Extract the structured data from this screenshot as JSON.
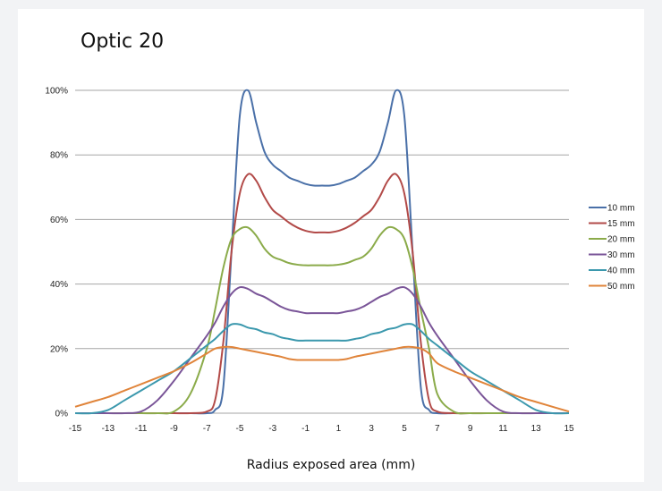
{
  "chart_data": {
    "type": "line",
    "title": "Optic 20",
    "xlabel": "Radius exposed area (mm)",
    "ylabel": "",
    "xlim": [
      -15,
      15
    ],
    "ylim": [
      0,
      100
    ],
    "x_ticks": [
      -15,
      -13,
      -11,
      -9,
      -7,
      -5,
      -3,
      -1,
      1,
      3,
      5,
      7,
      9,
      11,
      13,
      15
    ],
    "y_ticks": [
      0,
      20,
      40,
      60,
      80,
      100
    ],
    "y_tick_format": "percent",
    "grid": "horizontal",
    "legend_position": "right",
    "x": [
      -15,
      -14,
      -13,
      -12,
      -11,
      -10,
      -9,
      -8,
      -7,
      -6.5,
      -6,
      -5.5,
      -5,
      -4.5,
      -4,
      -3.5,
      -3,
      -2.5,
      -2,
      -1.5,
      -1,
      -0.5,
      0,
      0.5,
      1,
      1.5,
      2,
      2.5,
      3,
      3.5,
      4,
      4.5,
      5,
      5.5,
      6,
      6.5,
      7,
      8,
      9,
      10,
      11,
      12,
      13,
      14,
      15
    ],
    "series": [
      {
        "name": "10 mm",
        "color": "#4a70a8",
        "values": [
          0,
          0,
          0,
          0,
          0,
          0,
          0,
          0,
          0,
          1,
          8,
          50,
          92,
          100,
          90,
          81,
          77,
          75,
          73,
          72,
          71,
          70.5,
          70.5,
          70.5,
          71,
          72,
          73,
          75,
          77,
          81,
          90,
          100,
          92,
          50,
          8,
          1,
          0,
          0,
          0,
          0,
          0,
          0,
          0,
          0,
          0
        ]
      },
      {
        "name": "15 mm",
        "color": "#b24a48",
        "values": [
          0,
          0,
          0,
          0,
          0,
          0,
          0,
          0,
          0.5,
          4,
          22,
          50,
          68,
          74,
          72,
          67,
          63,
          61,
          59,
          57.5,
          56.5,
          56,
          56,
          56,
          56.5,
          57.5,
          59,
          61,
          63,
          67,
          72,
          74,
          68,
          50,
          22,
          4,
          0.5,
          0,
          0,
          0,
          0,
          0,
          0,
          0,
          0
        ]
      },
      {
        "name": "20 mm",
        "color": "#8bab4a",
        "values": [
          0,
          0,
          0,
          0,
          0,
          0,
          0.5,
          6,
          20,
          32,
          45,
          54,
          57,
          57.5,
          55,
          51,
          48.5,
          47.5,
          46.5,
          46,
          45.8,
          45.8,
          45.8,
          45.8,
          46,
          46.5,
          47.5,
          48.5,
          51,
          55,
          57.5,
          57,
          54,
          45,
          32,
          20,
          6,
          0.5,
          0,
          0,
          0,
          0,
          0,
          0,
          0
        ]
      },
      {
        "name": "30 mm",
        "color": "#7a5598",
        "values": [
          0,
          0,
          0,
          0,
          0.5,
          4,
          10,
          17,
          24,
          28,
          33,
          37,
          39,
          38.5,
          37,
          36,
          34.5,
          33,
          32,
          31.5,
          31,
          31,
          31,
          31,
          31,
          31.5,
          32,
          33,
          34.5,
          36,
          37,
          38.5,
          39,
          37,
          33,
          28,
          24,
          17,
          10,
          4,
          0.5,
          0,
          0,
          0,
          0
        ]
      },
      {
        "name": "40 mm",
        "color": "#3b98ad",
        "values": [
          0,
          0,
          1,
          4,
          7,
          10,
          13,
          17,
          21,
          23,
          25.5,
          27.5,
          27.5,
          26.5,
          26,
          25,
          24.5,
          23.5,
          23,
          22.5,
          22.5,
          22.5,
          22.5,
          22.5,
          22.5,
          22.5,
          23,
          23.5,
          24.5,
          25,
          26,
          26.5,
          27.5,
          27.5,
          25.5,
          23,
          21,
          17,
          13,
          10,
          7,
          4,
          1,
          0,
          0
        ]
      },
      {
        "name": "50 mm",
        "color": "#e0843a",
        "values": [
          2,
          3.5,
          5,
          7,
          9,
          11,
          13,
          15.5,
          18.5,
          20,
          20.5,
          20.5,
          20,
          19.5,
          19,
          18.5,
          18,
          17.5,
          16.8,
          16.5,
          16.5,
          16.5,
          16.5,
          16.5,
          16.5,
          16.8,
          17.5,
          18,
          18.5,
          19,
          19.5,
          20,
          20.5,
          20.5,
          20,
          18.5,
          15.5,
          13,
          11,
          9,
          7,
          5,
          3.5,
          2,
          0.5
        ]
      }
    ]
  }
}
